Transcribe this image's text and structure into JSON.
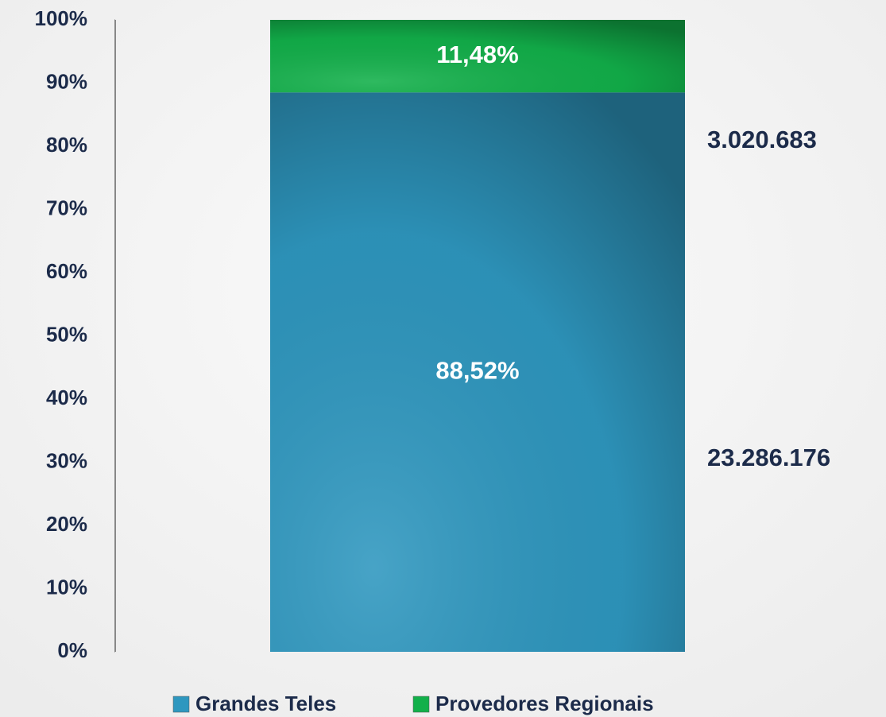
{
  "chart_data": {
    "type": "stacked_bar",
    "categories": [
      null
    ],
    "series": [
      {
        "name": "Grandes Teles",
        "color": "#2e97bf",
        "values": [
          88.52
        ],
        "value_labels": [
          "88,52%"
        ]
      },
      {
        "name": "Provedores Regionais",
        "color": "#12b04a",
        "values": [
          11.48
        ],
        "value_labels": [
          "11,48%"
        ]
      }
    ],
    "annotations": [
      "3.020.683",
      "23.286.176"
    ],
    "ylim": [
      0,
      100
    ],
    "yticks": [
      {
        "value": 0,
        "label": "0%"
      },
      {
        "value": 10,
        "label": "10%"
      },
      {
        "value": 20,
        "label": "20%"
      },
      {
        "value": 30,
        "label": "30%"
      },
      {
        "value": 40,
        "label": "40%"
      },
      {
        "value": 50,
        "label": "50%"
      },
      {
        "value": 60,
        "label": "60%"
      },
      {
        "value": 70,
        "label": "70%"
      },
      {
        "value": 80,
        "label": "80%"
      },
      {
        "value": 90,
        "label": "90%"
      },
      {
        "value": 100,
        "label": "100%"
      }
    ],
    "grid": false
  }
}
